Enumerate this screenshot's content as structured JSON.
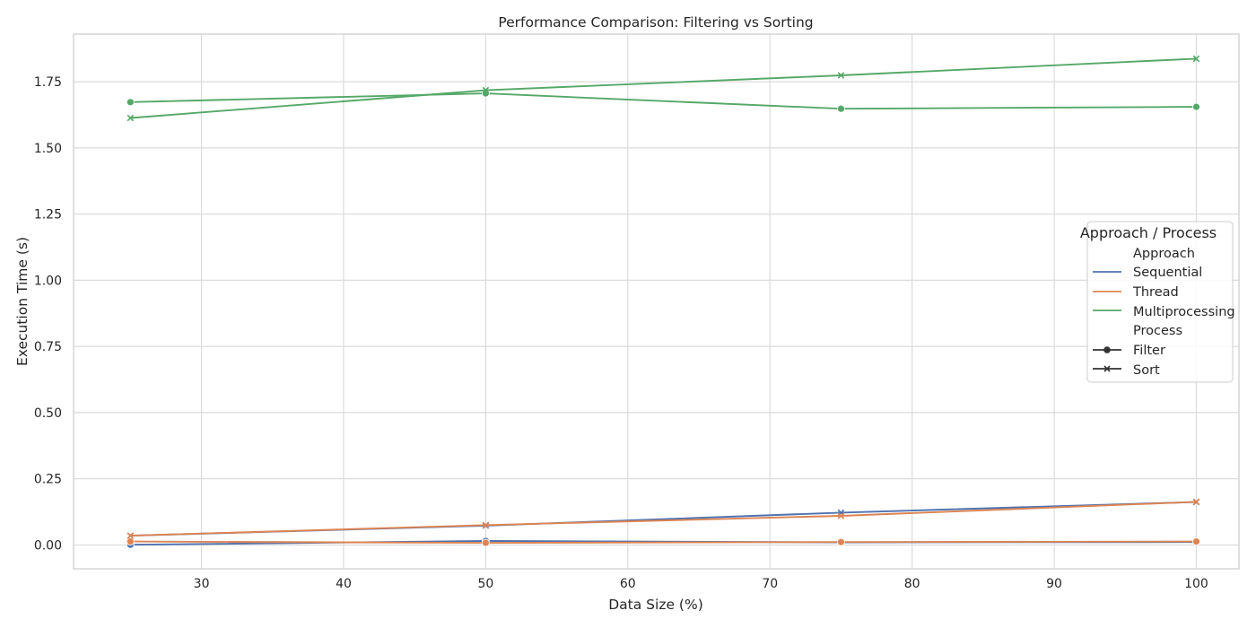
{
  "chart_data": {
    "type": "line",
    "title": "Performance Comparison: Filtering vs Sorting",
    "xlabel": "Data Size (%)",
    "ylabel": "Execution Time (s)",
    "x": [
      25,
      50,
      75,
      100
    ],
    "xlim": [
      21,
      103
    ],
    "ylim": [
      -0.09,
      1.93
    ],
    "xticks": [
      30,
      40,
      50,
      60,
      70,
      80,
      90,
      100
    ],
    "yticks": [
      "0.00",
      "0.25",
      "0.50",
      "0.75",
      "1.00",
      "1.25",
      "1.50",
      "1.75"
    ],
    "grid": true,
    "legend": {
      "placement": "right",
      "title": "Approach / Process",
      "hue_title": "Approach",
      "style_title": "Process"
    },
    "approaches": [
      {
        "name": "Sequential",
        "color": "#4c72b0"
      },
      {
        "name": "Thread",
        "color": "#dd8452"
      },
      {
        "name": "Multiprocessing",
        "color": "#55a868"
      }
    ],
    "processes": [
      {
        "name": "Filter",
        "marker": "circle"
      },
      {
        "name": "Sort",
        "marker": "x"
      }
    ],
    "series": [
      {
        "approach": "Sequential",
        "process": "Filter",
        "values": [
          0.001,
          0.015,
          0.01,
          0.011
        ]
      },
      {
        "approach": "Sequential",
        "process": "Sort",
        "values": [
          0.035,
          0.073,
          0.122,
          0.162
        ]
      },
      {
        "approach": "Thread",
        "process": "Filter",
        "values": [
          0.013,
          0.008,
          0.011,
          0.013
        ]
      },
      {
        "approach": "Thread",
        "process": "Sort",
        "values": [
          0.035,
          0.075,
          0.11,
          0.163
        ]
      },
      {
        "approach": "Multiprocessing",
        "process": "Filter",
        "values": [
          1.673,
          1.706,
          1.648,
          1.655
        ]
      },
      {
        "approach": "Multiprocessing",
        "process": "Sort",
        "values": [
          1.613,
          1.718,
          1.774,
          1.837
        ]
      }
    ]
  }
}
